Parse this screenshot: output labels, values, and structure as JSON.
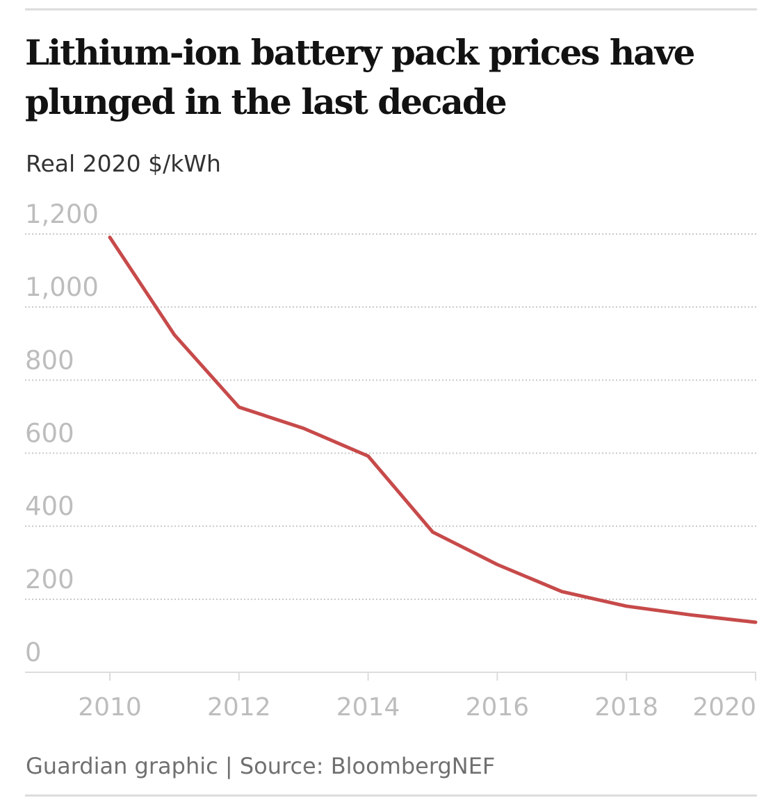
{
  "chart_data": {
    "type": "line",
    "title": "Lithium-ion battery pack prices have plunged in the last decade",
    "ylabel": "Real 2020 $/kWh",
    "xlabel": "",
    "x": [
      2010,
      2011,
      2012,
      2013,
      2014,
      2015,
      2016,
      2017,
      2018,
      2019,
      2020
    ],
    "series": [
      {
        "values": [
          1191,
          924,
          726,
          668,
          592,
          384,
          295,
          221,
          181,
          157,
          137
        ],
        "color": "#c74a4a"
      }
    ],
    "ylim": [
      0,
      1200
    ],
    "xlim": [
      2008.7,
      2020
    ],
    "yticks": [
      0,
      200,
      400,
      600,
      800,
      1000,
      1200
    ],
    "ytick_labels": [
      "0",
      "200",
      "400",
      "600",
      "800",
      "1,000",
      "1,200"
    ],
    "xticks": [
      2010,
      2012,
      2014,
      2016,
      2018,
      2020
    ],
    "xtick_labels": [
      "2010",
      "2012",
      "2014",
      "2016",
      "2018",
      "2020"
    ],
    "grid": "horizontal dotted",
    "legend": "none",
    "footer": "Guardian graphic | Source: BloombergNEF"
  }
}
